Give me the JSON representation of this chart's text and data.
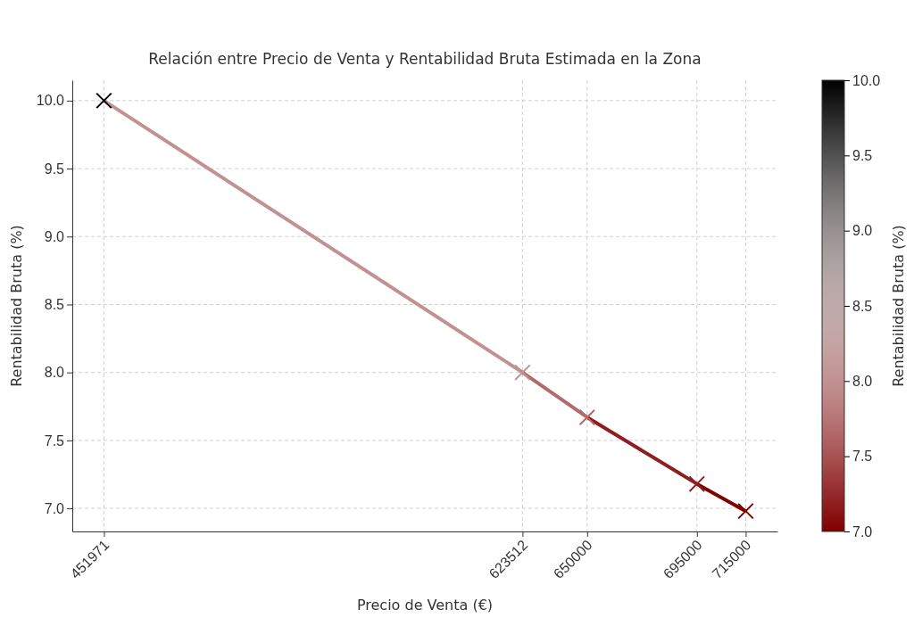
{
  "chart_data": {
    "type": "line",
    "title": "Relación entre Precio de Venta y Rentabilidad Bruta Estimada en la Zona",
    "xlabel": "Precio de Venta (€)",
    "ylabel": "Rentabilidad Bruta (%)",
    "clabel": "Rentabilidad Bruta (%)",
    "x": [
      451971,
      623512,
      650000,
      695000,
      715000
    ],
    "values": [
      10.0,
      8.0,
      7.67,
      7.18,
      6.98
    ],
    "clim": [
      7.0,
      10.0
    ],
    "cticks": [
      {
        "value": 7,
        "label": "7.0"
      },
      7.5,
      {
        "value": 8,
        "label": "8.0"
      },
      8.5,
      {
        "value": 9,
        "label": "9.0"
      },
      9.5,
      {
        "value": 10,
        "label": "10.0"
      }
    ],
    "xlim": [
      439000,
      728000
    ],
    "xticks": [
      451971,
      623512,
      650000,
      695000,
      715000
    ],
    "ylim": [
      6.83,
      10.15
    ],
    "yticks": [
      {
        "value": 7,
        "label": "7.0"
      },
      7.5,
      {
        "value": 8,
        "label": "8.0"
      },
      8.5,
      {
        "value": 9,
        "label": "9.0"
      },
      9.5,
      {
        "value": 10,
        "label": "10.0"
      }
    ],
    "grid": true,
    "marker": "cross",
    "line_style": "solid"
  }
}
